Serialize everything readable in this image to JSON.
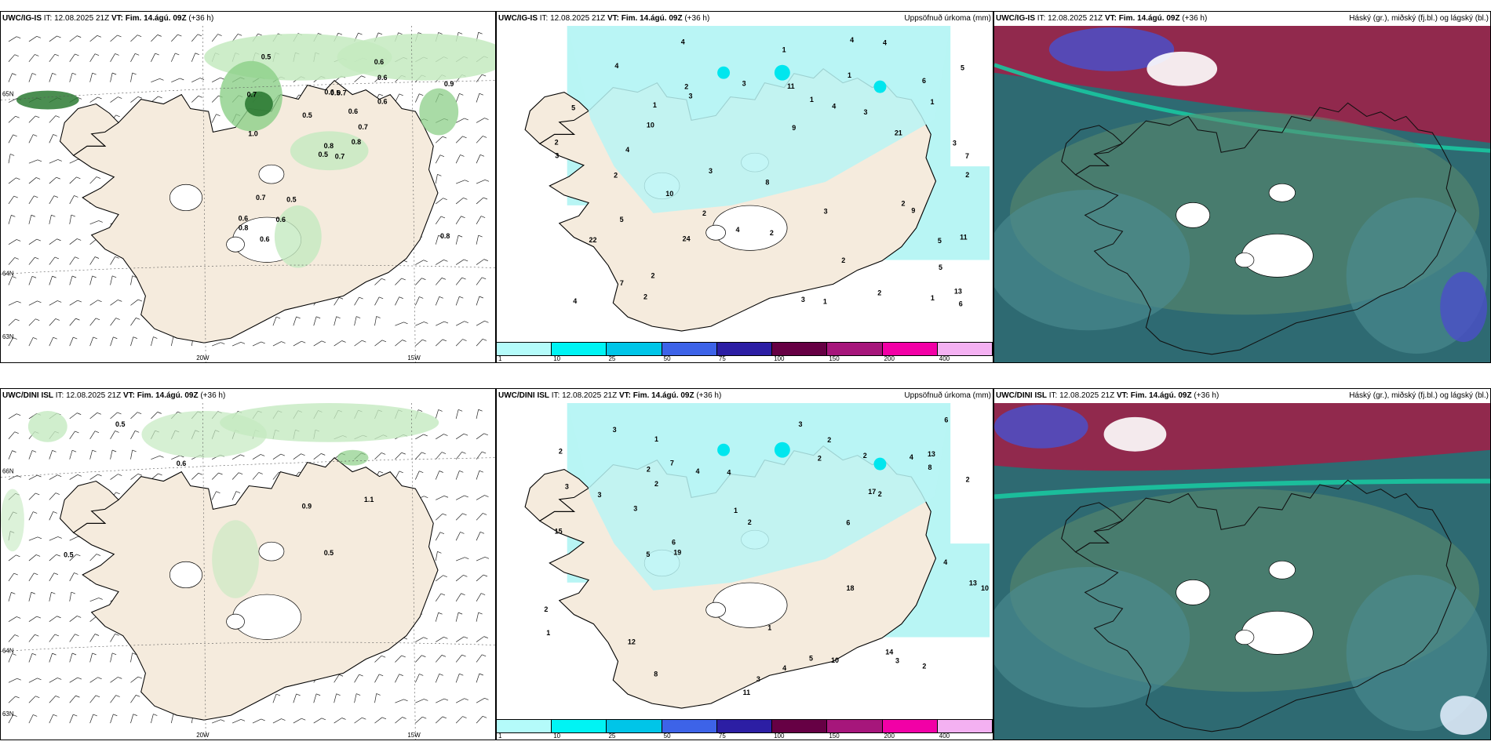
{
  "panels": [
    {
      "id": "top-left",
      "model": "UWC/IG-IS",
      "it": "IT: 12.08.2025 21Z",
      "vt_label": "VT:",
      "vt_value": "Fim. 14.ágú. 09Z",
      "lead": "(+36 h)",
      "right_title": "",
      "labels": [
        "0.7",
        "0.7",
        "0.8",
        "0.6",
        "0.7",
        "0.5",
        "0.6",
        "0.7",
        "0.6",
        "0.8",
        "0.5",
        "0.8",
        "1.0",
        "0.9",
        "0.5",
        "0.6",
        "0.6",
        "0.6",
        "0.6",
        "0.7",
        "0.5",
        "0.8",
        "0.6",
        "0.5"
      ],
      "axis": {
        "lon1": "20W",
        "lon2": "15W",
        "lat1": "65N",
        "lat2": "64N",
        "lat3": "63N"
      }
    },
    {
      "id": "top-middle",
      "model": "UWC/IG-IS",
      "it": "IT: 12.08.2025 21Z",
      "vt_label": "VT:",
      "vt_value": "Fim. 14.ágú. 09Z",
      "lead": "(+36 h)",
      "right_title": "Uppsöfnuð úrkoma (mm)",
      "labels": [
        "3",
        "3",
        "4",
        "7",
        "3",
        "11",
        "2",
        "4",
        "5",
        "6",
        "10",
        "9",
        "21",
        "24",
        "22",
        "8",
        "10",
        "2",
        "4",
        "3",
        "13",
        "11",
        "7",
        "5",
        "9",
        "4",
        "4",
        "2",
        "3",
        "5",
        "2",
        "6",
        "2",
        "1",
        "4",
        "3",
        "2",
        "3",
        "1",
        "2",
        "1",
        "5",
        "4",
        "2",
        "5",
        "4",
        "1",
        "3",
        "2",
        "2",
        "1",
        "1",
        "2",
        "1"
      ],
      "colorbar": {
        "ticks": [
          "1",
          "10",
          "25",
          "50",
          "75",
          "100",
          "150",
          "200",
          "400"
        ],
        "colors": [
          "#b4fbfa",
          "#00f4f4",
          "#00c5e8",
          "#3d63e8",
          "#2c1ea4",
          "#660044",
          "#a6167b",
          "#f200a6",
          "#f4b1f2"
        ]
      }
    },
    {
      "id": "top-right",
      "model": "UWC/IG-IS",
      "it": "IT: 12.08.2025 21Z",
      "vt_label": "VT:",
      "vt_value": "Fim. 14.ágú. 09Z",
      "lead": "(+36 h)",
      "right_title": "Háský (gr.), miðský (fj.bl.) og lágský (bl.)"
    },
    {
      "id": "bottom-left",
      "model": "UWC/DINI ISL",
      "it": "IT: 12.08.2025 21Z",
      "vt_label": "VT:",
      "vt_value": "Fim. 14.ágú. 09Z",
      "lead": "(+36 h)",
      "right_title": "",
      "labels": [
        "0.9",
        "1.1",
        "0.5",
        "0.5",
        "0.6",
        "0.5"
      ],
      "axis": {
        "lon1": "20W",
        "lon2": "15W",
        "lat1": "66N",
        "lat2": "64N",
        "lat3": "63N"
      }
    },
    {
      "id": "bottom-middle",
      "model": "UWC/DINI ISL",
      "it": "IT: 12.08.2025 21Z",
      "vt_label": "VT:",
      "vt_value": "Fim. 14.ágú. 09Z",
      "lead": "(+36 h)",
      "right_title": "Uppsöfnuð úrkoma (mm)",
      "labels": [
        "3",
        "2",
        "6",
        "3",
        "4",
        "11",
        "18",
        "19",
        "13",
        "10",
        "13",
        "7",
        "17",
        "12",
        "15",
        "8",
        "6",
        "4",
        "2",
        "5",
        "3",
        "4",
        "2",
        "1",
        "2",
        "3",
        "8",
        "2",
        "3",
        "5",
        "2",
        "10",
        "6",
        "3",
        "2",
        "1",
        "4",
        "2",
        "3",
        "1",
        "2",
        "2",
        "1",
        "14",
        "4",
        "2"
      ],
      "colorbar": {
        "ticks": [
          "1",
          "10",
          "25",
          "50",
          "75",
          "100",
          "150",
          "200",
          "400"
        ],
        "colors": [
          "#b4fbfa",
          "#00f4f4",
          "#00c5e8",
          "#3d63e8",
          "#2c1ea4",
          "#660044",
          "#a6167b",
          "#f200a6",
          "#f4b1f2"
        ]
      }
    },
    {
      "id": "bottom-right",
      "model": "UWC/DINI ISL",
      "it": "IT: 12.08.2025 21Z",
      "vt_label": "VT:",
      "vt_value": "Fim. 14.ágú. 09Z",
      "lead": "(+36 h)",
      "right_title": "Háský (gr.), miðský (fj.bl.) og lágský (bl.)"
    }
  ],
  "colors": {
    "land": "#f5ebdd",
    "precip_light": "#b8f5f4",
    "green_light": "#c4eac0",
    "green_mid": "#8ccf88",
    "green_dark": "#2c7a33",
    "cloud_base": "#2e6a72",
    "cloud_low": "#4c8e93",
    "cloud_mid": "#5f8a6c",
    "high_red": "#a21d47",
    "high_white": "#ffffff",
    "high_blue": "#4b4fc8",
    "front_teal": "#19c6a0"
  }
}
